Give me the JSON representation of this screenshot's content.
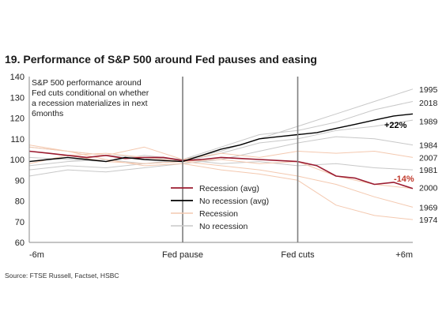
{
  "chart_data": {
    "type": "line",
    "title": "19. Performance of S&P 500 around Fed pauses and easing",
    "note_lines": [
      "S&P 500 performance around",
      "Fed cuts conditional on whether",
      "a recession materializes in next",
      "6months"
    ],
    "source": "Source: FTSE Russell, Factset, HSBC",
    "ylim": [
      60,
      140
    ],
    "yticks": [
      "60",
      "70",
      "80",
      "90",
      "100",
      "110",
      "120",
      "130",
      "140"
    ],
    "xlim": [
      0,
      100
    ],
    "xticks": [
      {
        "x": 0,
        "label": "-6m"
      },
      {
        "x": 40,
        "label": "Fed pause"
      },
      {
        "x": 70,
        "label": "Fed cuts"
      },
      {
        "x": 100,
        "label": "+6m"
      }
    ],
    "vlines": [
      40,
      70
    ],
    "grid": false,
    "legend_position": "center-left",
    "legend": [
      {
        "label": "Recession (avg)",
        "color": "#9b1b30"
      },
      {
        "label": "No recession (avg)",
        "color": "#000000"
      },
      {
        "label": "Recession",
        "color": "#f4c9b0"
      },
      {
        "label": "No recession",
        "color": "#c8c8c8"
      }
    ],
    "annotations": [
      {
        "text": "+22%",
        "color": "#000000"
      },
      {
        "text": "-14%",
        "color": "#c0392b"
      }
    ],
    "end_labels": [
      {
        "label": "1995",
        "y": 134
      },
      {
        "label": "2018",
        "y": 127.5
      },
      {
        "label": "1989",
        "y": 118.5
      },
      {
        "label": "1984",
        "y": 107
      },
      {
        "label": "2007",
        "y": 101
      },
      {
        "label": "1981",
        "y": 95
      },
      {
        "label": "2000",
        "y": 86.5
      },
      {
        "label": "1969",
        "y": 77
      },
      {
        "label": "1974",
        "y": 71
      }
    ],
    "series": [
      {
        "name": "Recession (avg)",
        "color": "#9b1b30",
        "width": 1.6,
        "x": [
          0,
          5,
          10,
          15,
          20,
          25,
          30,
          35,
          40,
          45,
          50,
          55,
          60,
          65,
          70,
          75,
          80,
          85,
          90,
          95,
          100
        ],
        "y": [
          104,
          103,
          102,
          101,
          102,
          100.5,
          101,
          101,
          99.5,
          100,
          101,
          100.5,
          100,
          99.5,
          99,
          97,
          92,
          91,
          88,
          89,
          86
        ]
      },
      {
        "name": "No recession (avg)",
        "color": "#000000",
        "width": 1.4,
        "x": [
          0,
          5,
          10,
          15,
          20,
          25,
          30,
          35,
          40,
          45,
          50,
          55,
          60,
          65,
          70,
          75,
          80,
          85,
          90,
          95,
          100
        ],
        "y": [
          99,
          100,
          101,
          100,
          99,
          101,
          100,
          99.5,
          99,
          102,
          105,
          107,
          110,
          111,
          112,
          113,
          115,
          117,
          119,
          121,
          122
        ]
      },
      {
        "name": "1995",
        "color": "#c8c8c8",
        "width": 1,
        "x": [
          0,
          10,
          20,
          30,
          40,
          50,
          60,
          70,
          80,
          90,
          100
        ],
        "y": [
          95,
          97,
          96,
          98,
          100,
          104,
          110,
          116,
          122,
          128,
          134
        ]
      },
      {
        "name": "2018",
        "color": "#c8c8c8",
        "width": 1,
        "x": [
          0,
          10,
          20,
          30,
          40,
          50,
          60,
          70,
          80,
          90,
          100
        ],
        "y": [
          101,
          100,
          99,
          102,
          100,
          106,
          112,
          114,
          118,
          124,
          128
        ]
      },
      {
        "name": "1989",
        "color": "#c8c8c8",
        "width": 1,
        "x": [
          0,
          10,
          20,
          30,
          40,
          50,
          60,
          70,
          80,
          90,
          100
        ],
        "y": [
          97,
          99,
          100,
          98,
          99,
          103,
          108,
          110,
          114,
          116,
          119
        ]
      },
      {
        "name": "1984",
        "color": "#c8c8c8",
        "width": 1,
        "x": [
          0,
          10,
          20,
          30,
          40,
          50,
          60,
          70,
          80,
          90,
          100
        ],
        "y": [
          92,
          95,
          94,
          96,
          98,
          100,
          104,
          108,
          111,
          110,
          107
        ]
      },
      {
        "name": "1981",
        "color": "#c8c8c8",
        "width": 1,
        "x": [
          0,
          10,
          20,
          30,
          40,
          50,
          60,
          70,
          80,
          90,
          100
        ],
        "y": [
          106,
          104,
          102,
          101,
          100,
          98,
          99,
          97,
          98,
          96,
          95
        ]
      },
      {
        "name": "1969",
        "color": "#f4c9b0",
        "width": 1,
        "x": [
          0,
          10,
          20,
          30,
          40,
          50,
          60,
          70,
          80,
          90,
          100
        ],
        "y": [
          104,
          102,
          99,
          98,
          99,
          97,
          95,
          92,
          88,
          82,
          77
        ]
      },
      {
        "name": "1974",
        "color": "#f4c9b0",
        "width": 1,
        "x": [
          0,
          10,
          20,
          30,
          40,
          50,
          60,
          70,
          80,
          90,
          100
        ],
        "y": [
          106,
          104,
          100,
          97,
          98,
          95,
          93,
          90,
          78,
          73,
          71
        ]
      },
      {
        "name": "2000",
        "color": "#f4c9b0",
        "width": 1,
        "x": [
          0,
          10,
          20,
          30,
          40,
          50,
          60,
          70,
          80,
          90,
          100
        ],
        "y": [
          98,
          102,
          103,
          101,
          99,
          100,
          98,
          99,
          92,
          88,
          86
        ]
      },
      {
        "name": "2007",
        "color": "#f4c9b0",
        "width": 1,
        "x": [
          0,
          10,
          20,
          30,
          40,
          50,
          60,
          70,
          80,
          90,
          100
        ],
        "y": [
          107,
          104,
          102,
          106,
          100,
          103,
          101,
          104,
          103,
          104,
          101
        ]
      }
    ]
  }
}
